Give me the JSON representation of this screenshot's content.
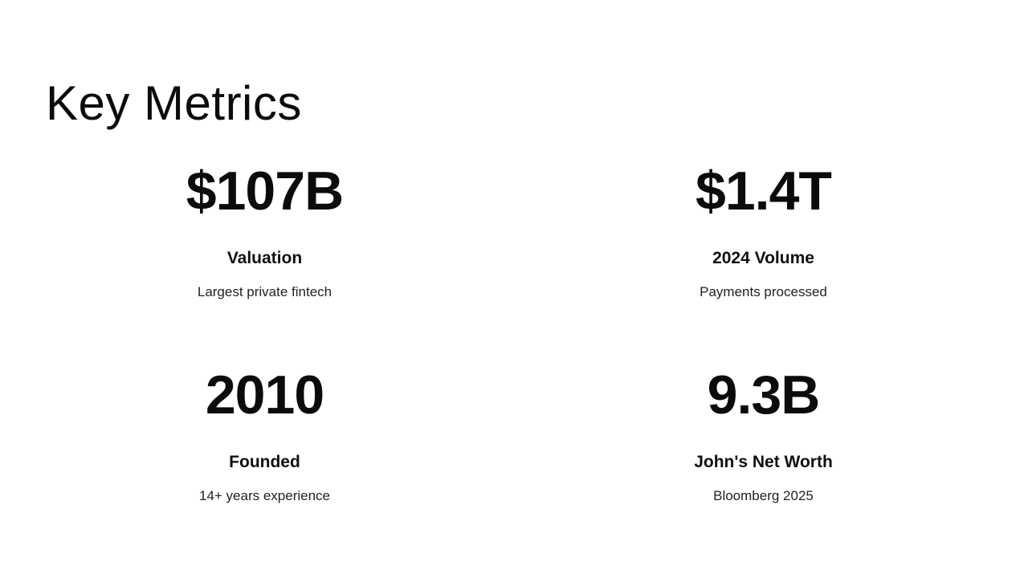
{
  "slide": {
    "title": "Key Metrics",
    "background_color": "#ffffff",
    "text_color": "#0b0b0b",
    "secondary_text_color": "#222222"
  },
  "metrics": [
    {
      "value": "$107B",
      "label": "Valuation",
      "description": "Largest private fintech"
    },
    {
      "value": "$1.4T",
      "label": "2024 Volume",
      "description": "Payments processed"
    },
    {
      "value": "2010",
      "label": "Founded",
      "description": "14+ years experience"
    },
    {
      "value": "9.3B",
      "label": "John's Net Worth",
      "description": "Bloomberg 2025"
    }
  ]
}
